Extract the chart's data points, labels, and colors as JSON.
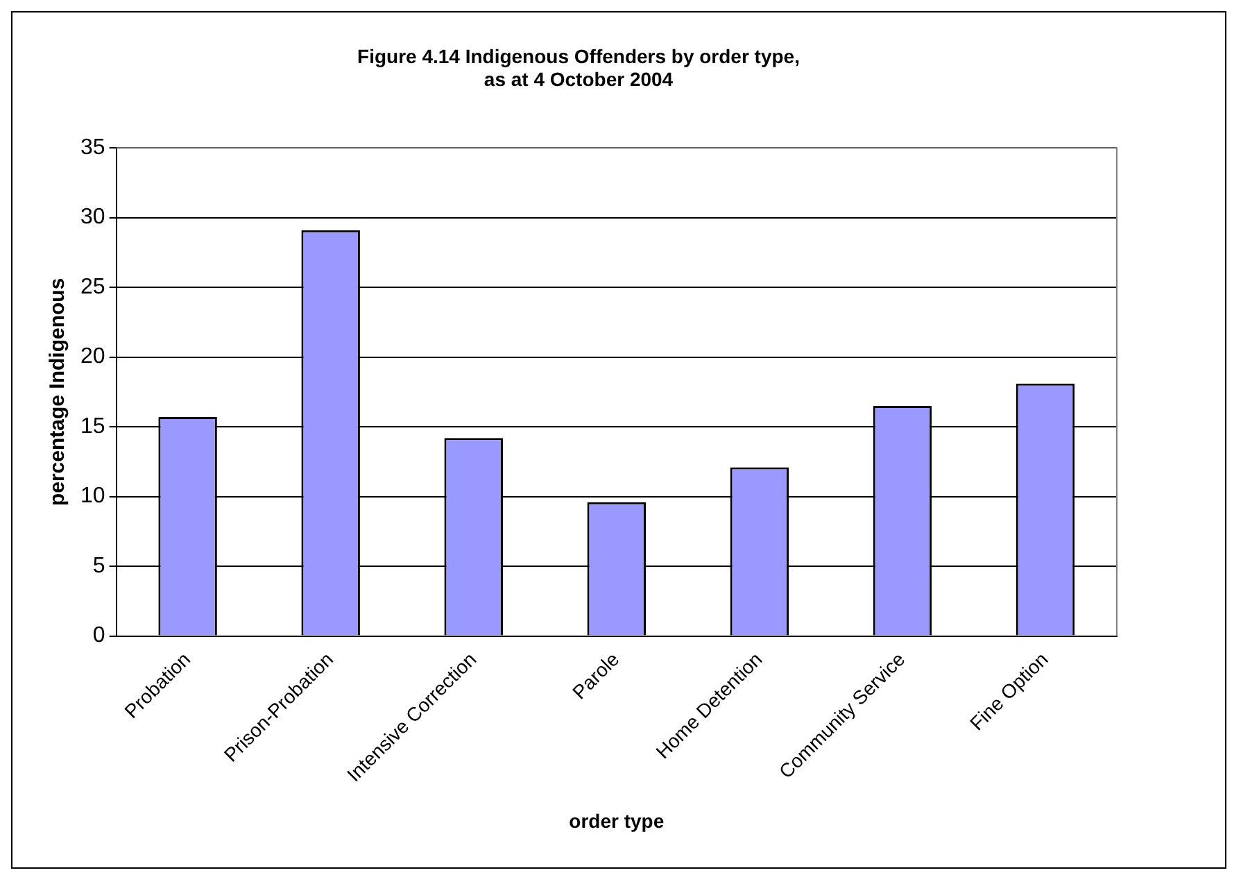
{
  "chart_data": {
    "type": "bar",
    "title": [
      "Figure 4.14 Indigenous Offenders by order type,",
      "as at 4 October 2004"
    ],
    "xlabel": "order type",
    "ylabel": "percentage Indigenous",
    "categories": [
      "Probation",
      "Prison-Probation",
      "Intensive Correction",
      "Parole",
      "Home Detention",
      "Community Service",
      "Fine Option"
    ],
    "values": [
      15.7,
      29.1,
      14.2,
      9.6,
      12.1,
      16.5,
      18.1
    ],
    "color": "#9999ff",
    "ylim": [
      0,
      35
    ],
    "yticks": [
      0,
      5,
      10,
      15,
      20,
      25,
      30,
      35
    ],
    "grid": "y",
    "legend": false
  }
}
